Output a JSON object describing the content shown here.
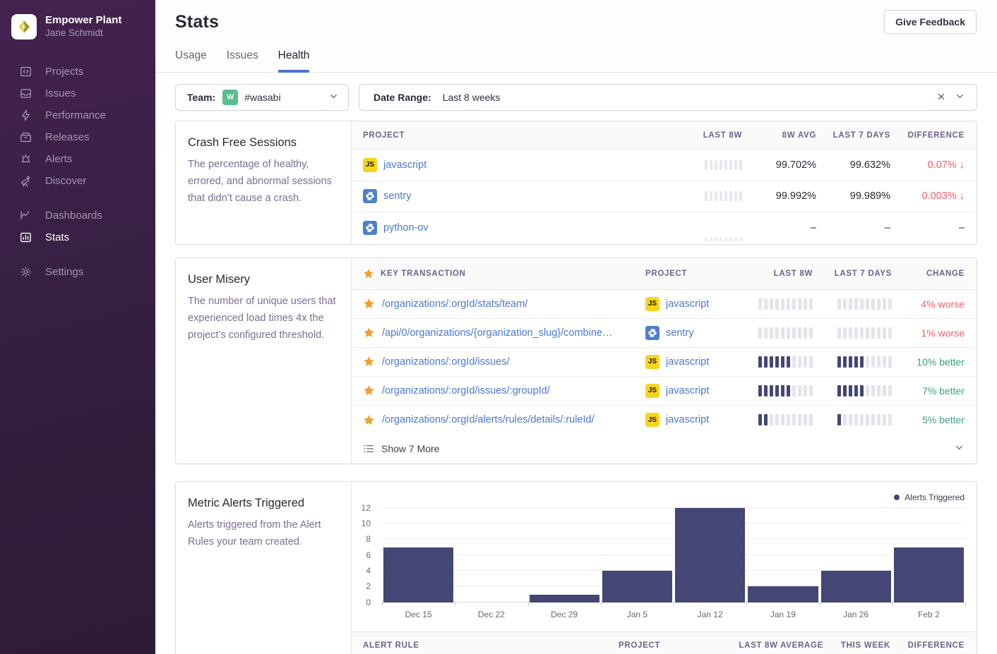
{
  "colors": {
    "accent-blue": "#4f74cf",
    "link": "#4a77d4",
    "red": "#ef5e66",
    "green": "#35a380",
    "bar": "#444674",
    "bar-light": "#e5e3ec",
    "team-badge": "#57be8c",
    "js-yellow": "#f7d51d",
    "python-blue": "#4e80c9",
    "star-gold": "#f0a12f"
  },
  "sidebar": {
    "org_name": "Empower Plant",
    "user_name": "Jane Schmidt",
    "groups": [
      [
        {
          "label": "Projects",
          "icon": "projects"
        },
        {
          "label": "Issues",
          "icon": "issues"
        },
        {
          "label": "Performance",
          "icon": "performance"
        },
        {
          "label": "Releases",
          "icon": "releases"
        },
        {
          "label": "Alerts",
          "icon": "alerts"
        },
        {
          "label": "Discover",
          "icon": "discover"
        }
      ],
      [
        {
          "label": "Dashboards",
          "icon": "dashboards"
        },
        {
          "label": "Stats",
          "icon": "stats",
          "active": true
        }
      ],
      [
        {
          "label": "Settings",
          "icon": "settings"
        }
      ]
    ]
  },
  "header": {
    "title": "Stats",
    "feedback_button": "Give Feedback",
    "tabs": [
      {
        "label": "Usage",
        "active": false
      },
      {
        "label": "Issues",
        "active": false
      },
      {
        "label": "Health",
        "active": true
      }
    ]
  },
  "filters": {
    "team_label": "Team:",
    "team_badge": "W",
    "team_value": "#wasabi",
    "date_label": "Date Range:",
    "date_value": "Last 8 weeks"
  },
  "crash_free": {
    "title": "Crash Free Sessions",
    "description": "The percentage of healthy, errored, and abnormal sessions that didn’t cause a crash.",
    "columns": [
      "PROJECT",
      "LAST 8W",
      "8W AVG",
      "LAST 7 DAYS",
      "DIFFERENCE"
    ],
    "rows": [
      {
        "project": "javascript",
        "platform": "js",
        "avg": "99.702%",
        "last7": "99.632%",
        "difference": "0.07%",
        "trend": "down"
      },
      {
        "project": "sentry",
        "platform": "python",
        "avg": "99.992%",
        "last7": "99.989%",
        "difference": "0.003%",
        "trend": "down"
      },
      {
        "project": "python-ov",
        "platform": "python",
        "avg": "–",
        "last7": "–",
        "difference": "–",
        "trend": "none",
        "muted": true
      }
    ]
  },
  "user_misery": {
    "title": "User Misery",
    "description": "The number of unique users that experienced load times 4x the project’s configured threshold.",
    "columns": [
      "KEY TRANSACTION",
      "PROJECT",
      "LAST 8W",
      "LAST 7 DAYS",
      "CHANGE"
    ],
    "bars_total": 10,
    "rows": [
      {
        "transaction": "/organizations/:orgId/stats/team/",
        "project": "javascript",
        "platform": "js",
        "bars_8w": 0,
        "bars_7d": 0,
        "change": "4% worse",
        "direction": "worse"
      },
      {
        "transaction": "/api/0/organizations/{organization_slug}/combine…",
        "project": "sentry",
        "platform": "python",
        "bars_8w": 0,
        "bars_7d": 0,
        "change": "1% worse",
        "direction": "worse"
      },
      {
        "transaction": "/organizations/:orgId/issues/",
        "project": "javascript",
        "platform": "js",
        "bars_8w": 6,
        "bars_7d": 5,
        "change": "10% better",
        "direction": "better"
      },
      {
        "transaction": "/organizations/:orgId/issues/:groupId/",
        "project": "javascript",
        "platform": "js",
        "bars_8w": 6,
        "bars_7d": 5,
        "change": "7% better",
        "direction": "better"
      },
      {
        "transaction": "/organizations/:orgId/alerts/rules/details/:ruleId/",
        "project": "javascript",
        "platform": "js",
        "bars_8w": 2,
        "bars_7d": 1,
        "change": "5% better",
        "direction": "better"
      }
    ],
    "show_more": "Show 7 More"
  },
  "metric_alerts": {
    "title": "Metric Alerts Triggered",
    "description": "Alerts triggered from the Alert Rules your team created.",
    "table_columns": [
      "ALERT RULE",
      "PROJECT",
      "LAST 8W AVERAGE",
      "THIS WEEK",
      "DIFFERENCE"
    ]
  },
  "chart_data": {
    "type": "bar",
    "title": "Metric Alerts Triggered",
    "series_name": "Alerts Triggered",
    "categories": [
      "Dec 15",
      "Dec 22",
      "Dec 29",
      "Jan 5",
      "Jan 12",
      "Jan 19",
      "Jan 26",
      "Feb 2"
    ],
    "values": [
      7,
      0,
      1,
      4,
      12,
      2,
      4,
      7
    ],
    "ylim": [
      0,
      12
    ],
    "yticks": [
      0,
      2,
      4,
      6,
      8,
      10,
      12
    ],
    "grid": true,
    "legend_position": "top-right"
  }
}
